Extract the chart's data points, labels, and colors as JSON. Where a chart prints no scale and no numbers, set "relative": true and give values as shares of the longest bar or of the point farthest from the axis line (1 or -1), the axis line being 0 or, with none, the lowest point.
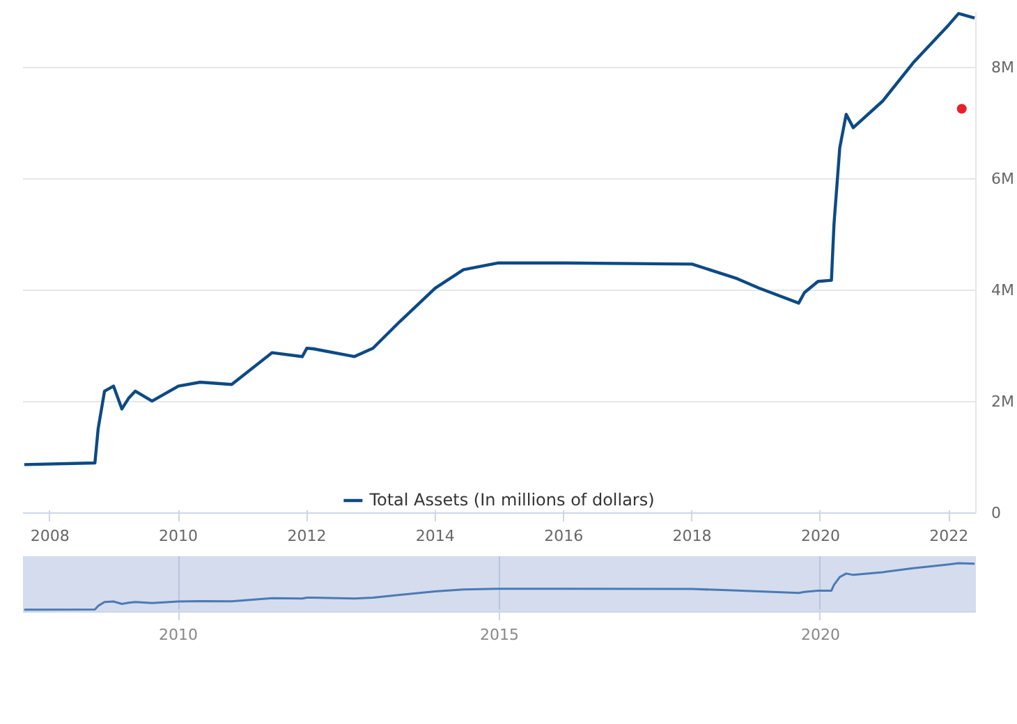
{
  "chart_data": [
    {
      "type": "line",
      "x": [
        2007.6,
        2008.7,
        2008.75,
        2008.85,
        2008.99,
        2009.12,
        2009.23,
        2009.33,
        2009.59,
        2010.0,
        2010.34,
        2010.83,
        2011.46,
        2011.93,
        2012.0,
        2012.1,
        2012.74,
        2013.03,
        2013.45,
        2014.0,
        2014.44,
        2014.97,
        2016.0,
        2018.0,
        2018.7,
        2019.04,
        2019.66,
        2019.75,
        2019.96,
        2020.17,
        2020.21,
        2020.3,
        2020.4,
        2020.51,
        2020.97,
        2021.44,
        2022.0,
        2022.15,
        2022.4
      ],
      "series": [
        {
          "name": "Total Assets (In millions of dollars)",
          "color": "#0d4a85",
          "values": [
            870000,
            900000,
            1510000,
            2190000,
            2280000,
            1870000,
            2070000,
            2190000,
            2010000,
            2280000,
            2350000,
            2310000,
            2880000,
            2810000,
            2960000,
            2950000,
            2810000,
            2960000,
            3440000,
            4040000,
            4370000,
            4490000,
            4490000,
            4470000,
            4210000,
            4040000,
            3770000,
            3960000,
            4160000,
            4180000,
            5190000,
            6560000,
            7160000,
            6920000,
            7400000,
            8080000,
            8770000,
            8970000,
            8890000
          ]
        },
        {
          "type": "scatter",
          "color": "#e8202a",
          "marker": "circle",
          "x": [
            2022.2
          ],
          "values": [
            7260000
          ]
        }
      ],
      "xlim": [
        2007.58,
        2022.42
      ],
      "xticks": [
        2008,
        2010,
        2012,
        2014,
        2016,
        2018,
        2020,
        2022
      ],
      "ylim": [
        0,
        9000000
      ],
      "yticks": [
        {
          "value": 0,
          "label": "0"
        },
        {
          "value": 2000000,
          "label": "2M"
        },
        {
          "value": 4000000,
          "label": "4M"
        },
        {
          "value": 6000000,
          "label": "6M"
        },
        {
          "value": 8000000,
          "label": "8M"
        }
      ],
      "grid": "y",
      "legend": "bottom"
    },
    {
      "type": "line",
      "relative": true,
      "x": [
        2007.6,
        2008.7,
        2008.75,
        2008.85,
        2008.99,
        2009.12,
        2009.23,
        2009.33,
        2009.59,
        2010.0,
        2010.34,
        2010.83,
        2011.46,
        2011.93,
        2012.0,
        2012.1,
        2012.74,
        2013.03,
        2013.45,
        2014.0,
        2014.44,
        2014.97,
        2016.0,
        2018.0,
        2018.7,
        2019.04,
        2019.66,
        2019.75,
        2019.96,
        2020.17,
        2020.21,
        2020.3,
        2020.4,
        2020.51,
        2020.97,
        2021.44,
        2022.0,
        2022.15,
        2022.4
      ],
      "series": [
        {
          "color": "#4a7ab5",
          "values": [
            0,
            0.004,
            0.079,
            0.163,
            0.174,
            0.123,
            0.148,
            0.163,
            0.141,
            0.174,
            0.183,
            0.178,
            0.248,
            0.24,
            0.258,
            0.257,
            0.24,
            0.258,
            0.317,
            0.391,
            0.432,
            0.447,
            0.447,
            0.444,
            0.412,
            0.391,
            0.358,
            0.381,
            0.406,
            0.409,
            0.533,
            0.702,
            0.777,
            0.747,
            0.806,
            0.89,
            0.975,
            1,
            0.99
          ]
        }
      ],
      "xlim": [
        2007.58,
        2022.42
      ],
      "xticks": [
        2010,
        2015,
        2020
      ],
      "grid": "x"
    }
  ]
}
